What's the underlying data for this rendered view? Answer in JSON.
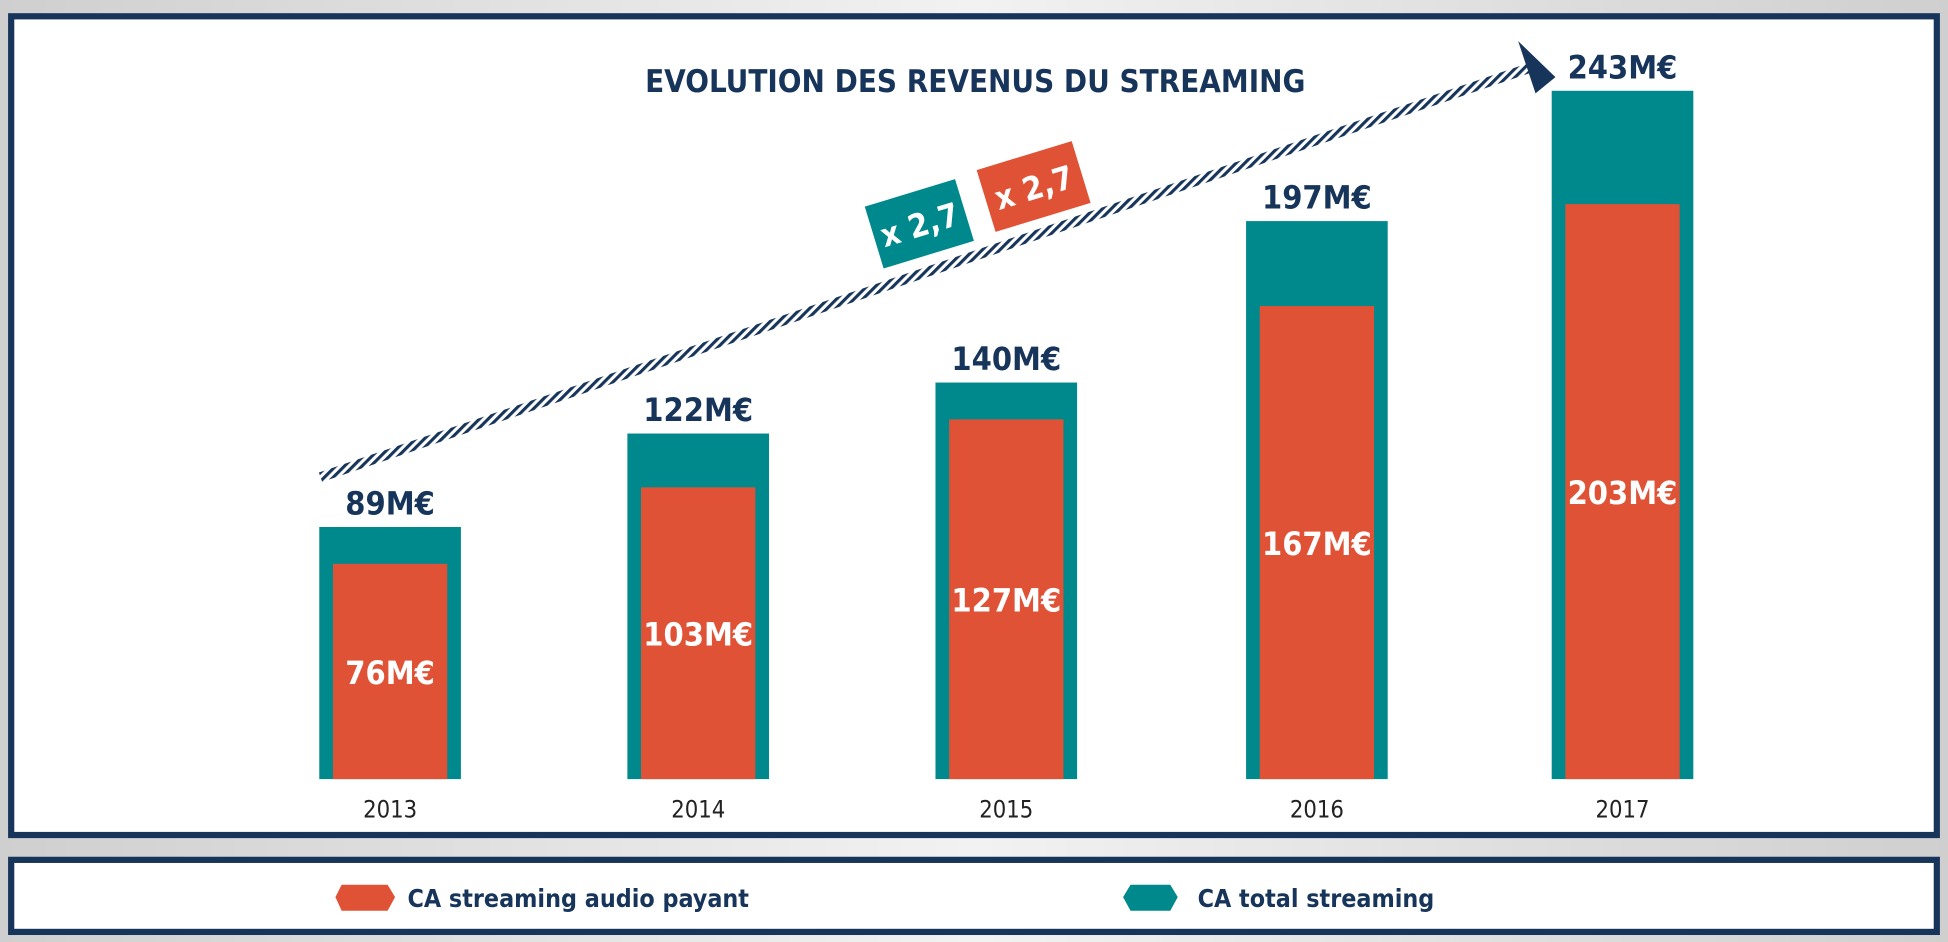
{
  "chart_data": {
    "type": "bar",
    "title": "EVOLUTION DES REVENUS DU STREAMING",
    "categories": [
      "2013",
      "2014",
      "2015",
      "2016",
      "2017"
    ],
    "series": [
      {
        "name": "CA total streaming",
        "values": [
          89,
          122,
          140,
          197,
          243
        ],
        "labels": [
          "89M€",
          "122M€",
          "140M€",
          "197M€",
          "243M€"
        ],
        "color": "#00898c"
      },
      {
        "name": "CA streaming audio payant",
        "values": [
          76,
          103,
          127,
          167,
          203
        ],
        "labels": [
          "76M€",
          "103M€",
          "127M€",
          "167M€",
          "203M€"
        ],
        "color": "#e05236"
      }
    ],
    "annotations": [
      {
        "text": "x 2,7",
        "color": "#00898c"
      },
      {
        "text": "x 2,7",
        "color": "#e05236"
      }
    ],
    "legend_position": "bottom",
    "grid": false,
    "unit": "M€"
  },
  "legend": {
    "items": [
      {
        "label": "CA streaming audio payant",
        "color": "#e05236"
      },
      {
        "label": "CA total streaming",
        "color": "#00898c"
      }
    ]
  },
  "colors": {
    "frame": "#17355a",
    "title": "#17355a"
  }
}
